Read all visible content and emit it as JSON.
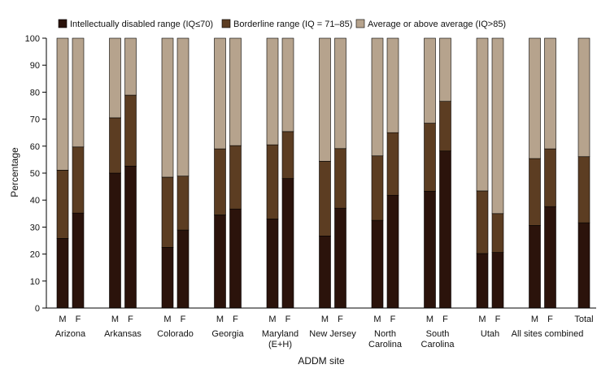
{
  "chart_data": {
    "type": "bar",
    "stacked": true,
    "title": "",
    "xlabel": "ADDM site",
    "ylabel": "Percentage",
    "ylim": [
      0,
      100
    ],
    "yticks": [
      0,
      10,
      20,
      30,
      40,
      50,
      60,
      70,
      80,
      90,
      100
    ],
    "grid": false,
    "legend_position": "top",
    "series": [
      {
        "name": "Intellectually disabled range (IQ≤70)",
        "color": "#2b130b",
        "values": [
          25.8,
          35.2,
          50.0,
          52.6,
          22.5,
          28.9,
          34.5,
          36.7,
          33.0,
          48.0,
          26.7,
          37.0,
          32.5,
          41.8,
          43.3,
          58.2,
          20.2,
          20.6,
          30.6,
          37.6,
          31.6
        ]
      },
      {
        "name": "Borderline range (IQ = 71–85)",
        "color": "#5c3d22",
        "values": [
          25.3,
          24.5,
          20.5,
          26.3,
          26.0,
          20.0,
          24.5,
          23.5,
          27.5,
          17.4,
          27.7,
          22.1,
          23.9,
          23.2,
          25.2,
          18.4,
          23.2,
          14.4,
          24.8,
          21.4,
          24.5
        ]
      },
      {
        "name": "Average or above average (IQ>85)",
        "color": "#b6a38d",
        "values": [
          48.9,
          40.3,
          29.5,
          21.1,
          51.5,
          51.1,
          41.0,
          39.8,
          39.5,
          34.6,
          45.6,
          40.9,
          43.6,
          35.0,
          31.5,
          23.4,
          56.6,
          65.0,
          44.6,
          41.0,
          43.9
        ]
      }
    ],
    "groups": [
      {
        "label_lines": [
          "Arizona"
        ],
        "bars": [
          "M",
          "F"
        ]
      },
      {
        "label_lines": [
          "Arkansas"
        ],
        "bars": [
          "M",
          "F"
        ]
      },
      {
        "label_lines": [
          "Colorado"
        ],
        "bars": [
          "M",
          "F"
        ]
      },
      {
        "label_lines": [
          "Georgia"
        ],
        "bars": [
          "M",
          "F"
        ]
      },
      {
        "label_lines": [
          "Maryland",
          "(E+H)"
        ],
        "bars": [
          "M",
          "F"
        ]
      },
      {
        "label_lines": [
          "New Jersey"
        ],
        "bars": [
          "M",
          "F"
        ]
      },
      {
        "label_lines": [
          "North",
          "Carolina"
        ],
        "bars": [
          "M",
          "F"
        ]
      },
      {
        "label_lines": [
          "South",
          "Carolina"
        ],
        "bars": [
          "M",
          "F"
        ]
      },
      {
        "label_lines": [
          "Utah"
        ],
        "bars": [
          "M",
          "F"
        ]
      },
      {
        "label_lines": [
          "All sites combined"
        ],
        "bars": [
          "M",
          "F",
          "Total"
        ]
      }
    ]
  }
}
